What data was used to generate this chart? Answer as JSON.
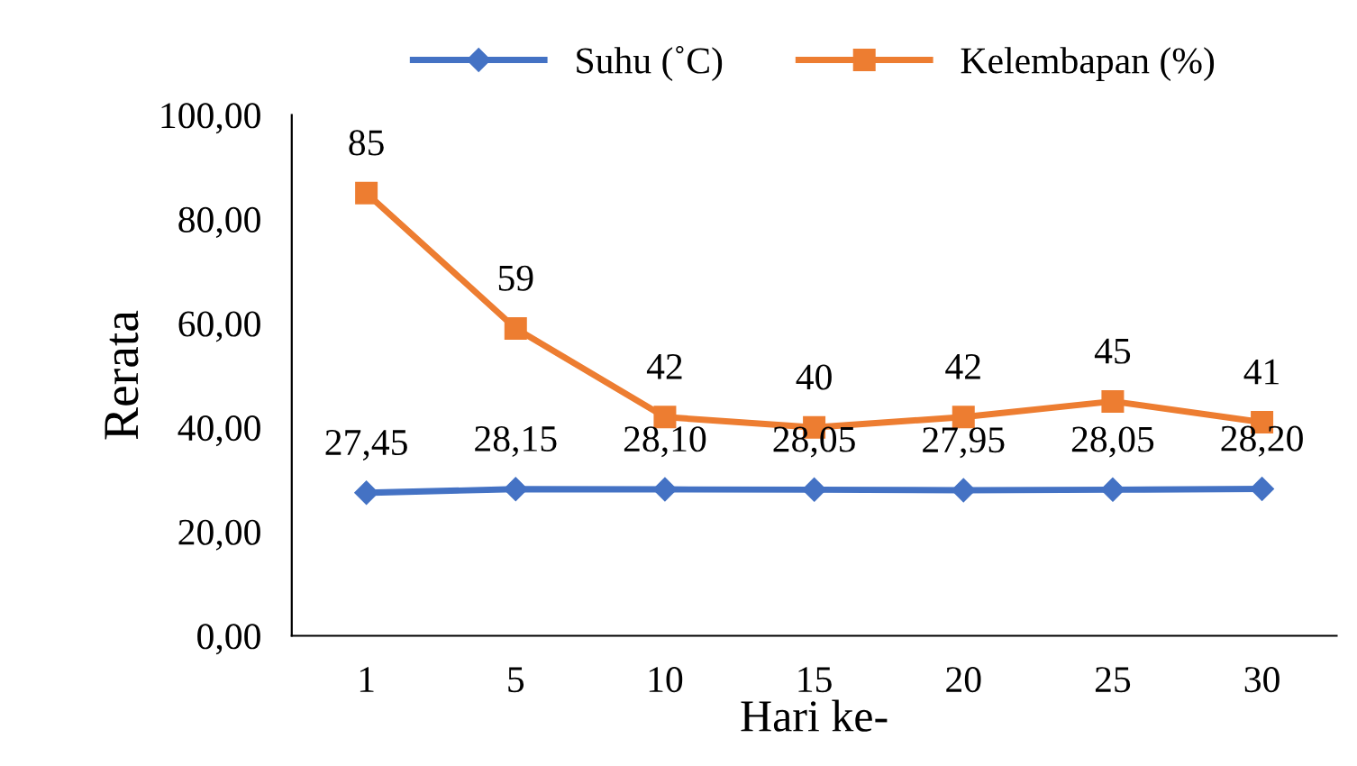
{
  "chart_data": {
    "type": "line",
    "xlabel": "Hari ke-",
    "ylabel": "Rerata",
    "categories": [
      "1",
      "5",
      "10",
      "15",
      "20",
      "25",
      "30"
    ],
    "series": [
      {
        "name": "Suhu (˚C)",
        "color": "#4472c4",
        "marker": "diamond",
        "values": [
          27.45,
          28.15,
          28.1,
          28.05,
          27.95,
          28.05,
          28.2
        ],
        "value_labels": [
          "27,45",
          "28,15",
          "28,10",
          "28,05",
          "27,95",
          "28,05",
          "28,20"
        ]
      },
      {
        "name": "Kelembapan (%)",
        "color": "#ed7d31",
        "marker": "square",
        "values": [
          85,
          59,
          42,
          40,
          42,
          45,
          41
        ],
        "value_labels": [
          "85",
          "59",
          "42",
          "40",
          "42",
          "45",
          "41"
        ]
      }
    ],
    "ylim": [
      0,
      100
    ],
    "yticks": [
      {
        "value": 0,
        "label": "0,00"
      },
      {
        "value": 20,
        "label": "20,00"
      },
      {
        "value": 40,
        "label": "40,00"
      },
      {
        "value": 60,
        "label": "60,00"
      },
      {
        "value": 80,
        "label": "80,00"
      },
      {
        "value": 100,
        "label": "100,00"
      }
    ],
    "grid": false,
    "legend": "top"
  }
}
